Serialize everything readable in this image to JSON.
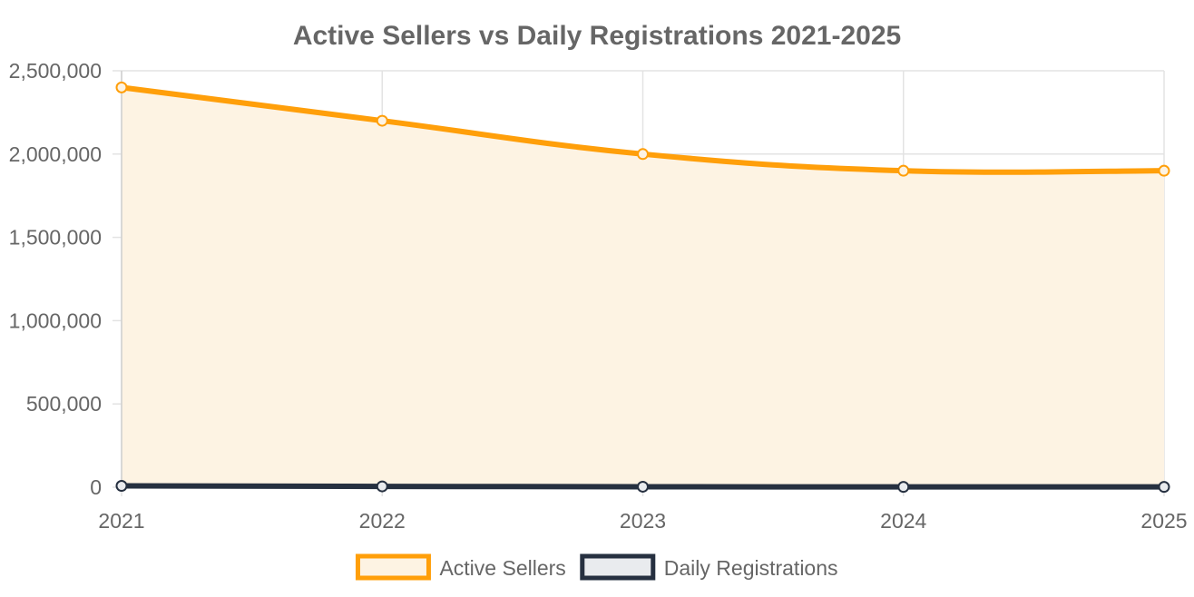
{
  "chart_data": {
    "type": "area",
    "title": "Active Sellers vs Daily Registrations 2021-2025",
    "xlabel": "",
    "ylabel": "",
    "x": [
      "2021",
      "2022",
      "2023",
      "2024",
      "2025"
    ],
    "ylim": [
      0,
      2500000
    ],
    "y_ticks": [
      "0",
      "500,000",
      "1,000,000",
      "1,500,000",
      "2,000,000",
      "2,500,000"
    ],
    "y_tick_values": [
      0,
      500000,
      1000000,
      1500000,
      2000000,
      2500000
    ],
    "grid": true,
    "legend_position": "bottom",
    "series": [
      {
        "name": "Active Sellers",
        "values": [
          2400000,
          2200000,
          2000000,
          1900000,
          1900000
        ],
        "color": "#ff9f0a",
        "fill": "#fdf3e3",
        "filled": true
      },
      {
        "name": "Daily Registrations",
        "values": [
          8000,
          5000,
          3000,
          2000,
          2000
        ],
        "color": "#263040",
        "fill": "#e9ebee",
        "filled": false
      }
    ]
  }
}
